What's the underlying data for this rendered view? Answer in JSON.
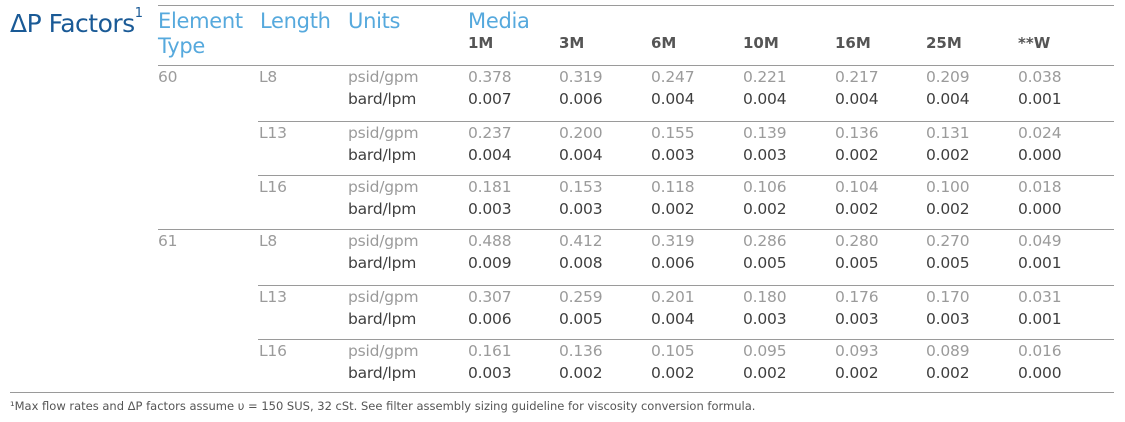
{
  "title": {
    "text": "ΔP Factors",
    "sup": "1"
  },
  "headers": {
    "element_type": "Element Type",
    "length": "Length",
    "units": "Units",
    "media": "Media"
  },
  "media_columns": [
    "1M",
    "3M",
    "6M",
    "10M",
    "16M",
    "25M",
    "**W"
  ],
  "groups": [
    {
      "element": "60",
      "rows": [
        {
          "length": "L8",
          "units1": "psid/gpm",
          "v1": [
            "0.378",
            "0.319",
            "0.247",
            "0.221",
            "0.217",
            "0.209",
            "0.038"
          ],
          "units2": "bard/lpm",
          "v2": [
            "0.007",
            "0.006",
            "0.004",
            "0.004",
            "0.004",
            "0.004",
            "0.001"
          ]
        },
        {
          "length": "L13",
          "units1": "psid/gpm",
          "v1": [
            "0.237",
            "0.200",
            "0.155",
            "0.139",
            "0.136",
            "0.131",
            "0.024"
          ],
          "units2": "bard/lpm",
          "v2": [
            "0.004",
            "0.004",
            "0.003",
            "0.003",
            "0.002",
            "0.002",
            "0.000"
          ]
        },
        {
          "length": "L16",
          "units1": "psid/gpm",
          "v1": [
            "0.181",
            "0.153",
            "0.118",
            "0.106",
            "0.104",
            "0.100",
            "0.018"
          ],
          "units2": "bard/lpm",
          "v2": [
            "0.003",
            "0.003",
            "0.002",
            "0.002",
            "0.002",
            "0.002",
            "0.000"
          ]
        }
      ]
    },
    {
      "element": "61",
      "rows": [
        {
          "length": "L8",
          "units1": "psid/gpm",
          "v1": [
            "0.488",
            "0.412",
            "0.319",
            "0.286",
            "0.280",
            "0.270",
            "0.049"
          ],
          "units2": "bard/lpm",
          "v2": [
            "0.009",
            "0.008",
            "0.006",
            "0.005",
            "0.005",
            "0.005",
            "0.001"
          ]
        },
        {
          "length": "L13",
          "units1": "psid/gpm",
          "v1": [
            "0.307",
            "0.259",
            "0.201",
            "0.180",
            "0.176",
            "0.170",
            "0.031"
          ],
          "units2": "bard/lpm",
          "v2": [
            "0.006",
            "0.005",
            "0.004",
            "0.003",
            "0.003",
            "0.003",
            "0.001"
          ]
        },
        {
          "length": "L16",
          "units1": "psid/gpm",
          "v1": [
            "0.161",
            "0.136",
            "0.105",
            "0.095",
            "0.093",
            "0.089",
            "0.016"
          ],
          "units2": "bard/lpm",
          "v2": [
            "0.003",
            "0.002",
            "0.002",
            "0.002",
            "0.002",
            "0.002",
            "0.000"
          ]
        }
      ]
    }
  ],
  "footnote": "¹Max flow rates and ΔP factors assume υ = 150 SUS, 32 cSt. See filter assembly sizing guideline for viscosity conversion formula."
}
